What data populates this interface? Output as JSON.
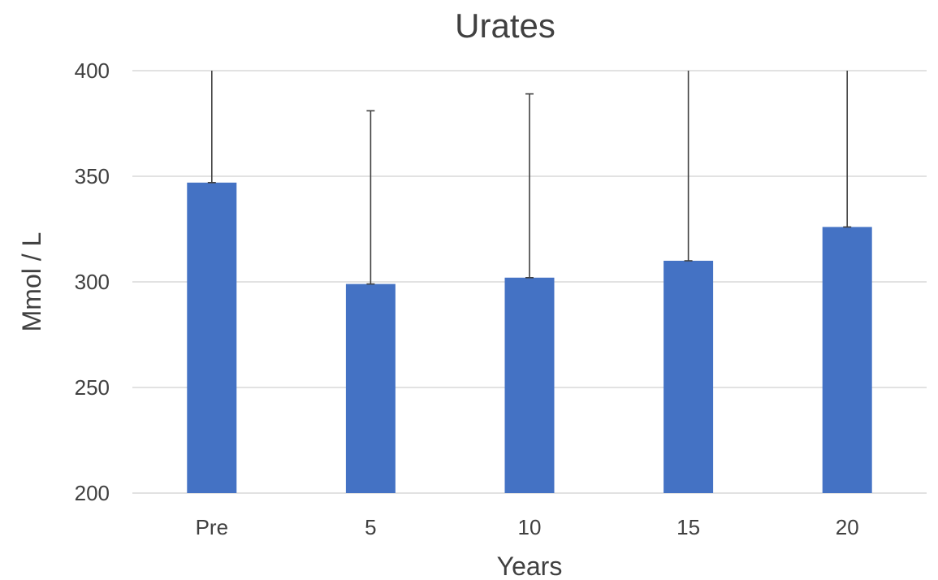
{
  "chart_data": {
    "type": "bar",
    "title": "Urates",
    "xlabel": "Years",
    "ylabel": "Mmol / L",
    "categories": [
      "Pre",
      "5",
      "10",
      "15",
      "20"
    ],
    "values": [
      347,
      299,
      302,
      310,
      326
    ],
    "error_upper": [
      400,
      381,
      389,
      400,
      400
    ],
    "ylim": [
      200,
      400
    ],
    "yticks": [
      200,
      250,
      300,
      350,
      400
    ],
    "grid": true,
    "legend": "none",
    "bar_color": "#4472c4"
  }
}
